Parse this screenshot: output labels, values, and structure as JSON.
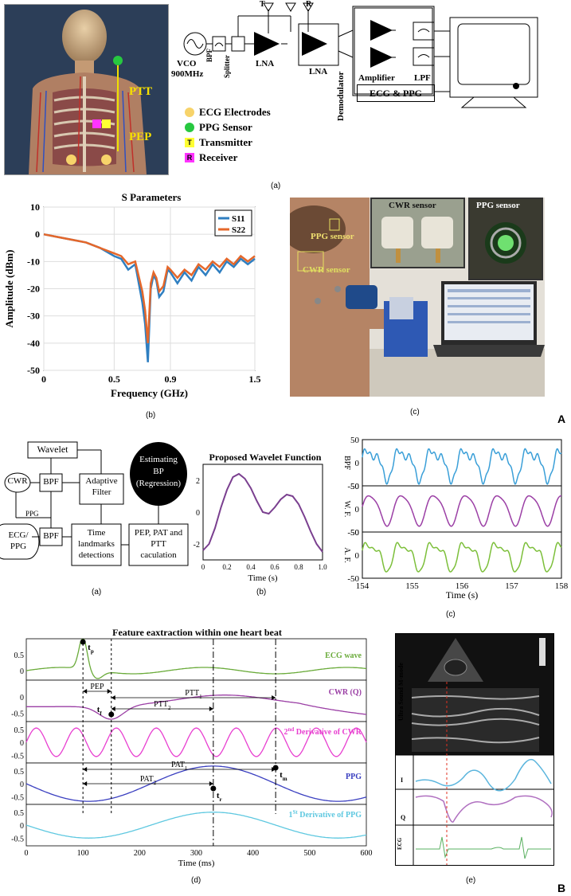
{
  "panelA": {
    "letter": "A",
    "a": {
      "caption": "(a)",
      "body_labels": {
        "ptt": "PTT",
        "pep": "PEP"
      },
      "legend": [
        {
          "color": "#f7d36a",
          "shape": "circle",
          "label": "ECG Electrodes"
        },
        {
          "color": "#27c840",
          "shape": "circle",
          "label": "PPG Sensor"
        },
        {
          "color": "#ffff33",
          "shape": "square",
          "glyph": "T",
          "label": "Transmitter"
        },
        {
          "color": "#ff33ff",
          "shape": "square",
          "glyph": "R",
          "label": "Receiver"
        }
      ],
      "blocks": {
        "vco": "VCO",
        "vco_freq": "900MHz",
        "bpf": "BPF",
        "splitter": "Splitter",
        "lna1": "LNA",
        "lna2": "LNA",
        "antenna_t": "T",
        "antenna_r": "R",
        "demodulator": "Demodulator",
        "amplifier": "Amplifier",
        "lpf": "LPF",
        "ecg_ppg": "ECG & PPG"
      }
    },
    "b": {
      "caption": "(b)",
      "chart_data": {
        "type": "line",
        "title": "S Parameters",
        "xlabel": "Frequency (GHz)",
        "ylabel": "Amplitude (dBm)",
        "xlim": [
          0,
          1.5
        ],
        "ylim": [
          -50,
          10
        ],
        "xticks": [
          "0",
          "0.5",
          "0.9",
          "1.5"
        ],
        "yticks": [
          "10",
          "0",
          "-10",
          "-20",
          "-30",
          "-40",
          "-50"
        ],
        "grid": true,
        "legend_position": "top-right",
        "series": [
          {
            "name": "S11",
            "color": "#2f7fc1",
            "x": [
              0,
              0.1,
              0.2,
              0.3,
              0.4,
              0.5,
              0.55,
              0.6,
              0.65,
              0.7,
              0.72,
              0.74,
              0.76,
              0.78,
              0.8,
              0.82,
              0.85,
              0.88,
              0.9,
              0.95,
              1.0,
              1.05,
              1.1,
              1.15,
              1.2,
              1.25,
              1.3,
              1.35,
              1.4,
              1.45,
              1.5
            ],
            "y": [
              0,
              -1,
              -2,
              -3,
              -5,
              -8,
              -9,
              -13,
              -11,
              -25,
              -33,
              -47,
              -20,
              -15,
              -17,
              -23,
              -21,
              -13,
              -14,
              -18,
              -14,
              -17,
              -12,
              -15,
              -11,
              -14,
              -10,
              -12,
              -9,
              -11,
              -9
            ]
          },
          {
            "name": "S22",
            "color": "#e5672a",
            "x": [
              0,
              0.1,
              0.2,
              0.3,
              0.4,
              0.5,
              0.55,
              0.6,
              0.65,
              0.7,
              0.72,
              0.74,
              0.76,
              0.78,
              0.8,
              0.82,
              0.85,
              0.88,
              0.9,
              0.95,
              1.0,
              1.05,
              1.1,
              1.15,
              1.2,
              1.25,
              1.3,
              1.35,
              1.4,
              1.45,
              1.5
            ],
            "y": [
              0,
              -1,
              -2,
              -3,
              -5,
              -7,
              -8,
              -11,
              -10,
              -21,
              -28,
              -40,
              -18,
              -14,
              -16,
              -21,
              -19,
              -12,
              -13,
              -16,
              -13,
              -15,
              -11,
              -13,
              -10,
              -12,
              -9,
              -11,
              -8,
              -10,
              -8
            ]
          }
        ]
      }
    },
    "c": {
      "caption": "(c)",
      "labels": {
        "ppg_sensor": "PPG sensor",
        "cwr_sensor": "CWR sensor",
        "inset_cwr": "CWR sensor",
        "inset_ppg": "PPG sensor"
      }
    }
  },
  "panelB": {
    "letter": "B",
    "a": {
      "caption": "(a)",
      "blocks": {
        "wavelet": "Wavelet",
        "cwr": "CWR",
        "bpf1": "BPF",
        "adaptive": "Adaptive\nFilter",
        "ppg_label": "PPG",
        "ecg_ppg": "ECG/\nPPG",
        "bpf2": "BPF",
        "landmarks": "Time\nlandmarks\ndetections",
        "pep_calc": "PEP, PAT and\nPTT\ncaculation",
        "estimating": "Estimating\nBP\n(Regression)"
      }
    },
    "b": {
      "caption": "(b)",
      "chart_data": {
        "type": "line",
        "title": "Proposed Wavelet Function",
        "xlabel": "Time (s)",
        "ylabel": "",
        "xlim": [
          0,
          1.0
        ],
        "ylim": [
          -3,
          3
        ],
        "xticks": [
          "0",
          "0.2",
          "0.4",
          "0.6",
          "0.8",
          "1.0"
        ],
        "yticks": [
          "2",
          "0",
          "-2"
        ],
        "series": [
          {
            "color": "#7a3f8f",
            "x": [
              0,
              0.05,
              0.1,
              0.15,
              0.2,
              0.25,
              0.3,
              0.35,
              0.4,
              0.45,
              0.5,
              0.55,
              0.6,
              0.65,
              0.7,
              0.75,
              0.8,
              0.85,
              0.9,
              0.95,
              1.0
            ],
            "y": [
              -2.4,
              -2.0,
              -1.0,
              0.3,
              1.4,
              2.2,
              2.4,
              2.1,
              1.5,
              0.7,
              0.0,
              -0.1,
              0.3,
              0.8,
              1.1,
              1.0,
              0.5,
              -0.3,
              -1.2,
              -2.0,
              -2.5
            ]
          }
        ]
      }
    },
    "c": {
      "caption": "(c)",
      "chart_data": {
        "type": "line",
        "xlabel": "Time (s)",
        "xlim": [
          154,
          158
        ],
        "xticks": [
          "154",
          "155",
          "156",
          "157",
          "158"
        ],
        "panels": [
          {
            "name": "BPF",
            "color": "#3a9fd8",
            "ylim": [
              -50,
              50
            ],
            "yticks": [
              "50",
              "0",
              "-50"
            ]
          },
          {
            "name": "W. F.",
            "color": "#9b3fa5",
            "ylim": [
              -50,
              50
            ],
            "yticks": [
              "50",
              "0",
              "-50"
            ]
          },
          {
            "name": "A. F.",
            "color": "#7cbf3a",
            "ylim": [
              -50,
              50
            ],
            "yticks": [
              "50",
              "0",
              "-50"
            ]
          }
        ]
      }
    },
    "d": {
      "caption": "(d)",
      "chart_data": {
        "type": "line",
        "title": "Feature eaxtraction within one heart beat",
        "xlabel": "Time (ms)",
        "xlim": [
          0,
          600
        ],
        "xticks": [
          "0",
          "100",
          "200",
          "300",
          "400",
          "500",
          "600"
        ],
        "panels": [
          {
            "name": "ECG wave",
            "color": "#6aab3a",
            "yticks": [
              "0.5",
              "0"
            ]
          },
          {
            "name": "CWR (Q)",
            "color": "#9b3fa5",
            "yticks": [
              "0",
              "-0.5"
            ]
          },
          {
            "name": "2nd Derivative of CWR",
            "color": "#e83fd0",
            "yticks": [
              "0.5",
              "0",
              "-0.5"
            ]
          },
          {
            "name": "PPG",
            "color": "#3a3fc0",
            "yticks": [
              "0.5",
              "0",
              "-0.5"
            ]
          },
          {
            "name": "1St Derivative of PPG",
            "color": "#5ec8e0",
            "yticks": [
              "0.5",
              "0",
              "-0.5"
            ]
          }
        ],
        "markers": {
          "vlines_ms": [
            100,
            150,
            330,
            440
          ]
        },
        "annotations": {
          "tp": "t",
          "tp_sub": "p",
          "tf": "t",
          "tf_sub": "f",
          "tm": "t",
          "tm_sub": "m",
          "tr": "t",
          "tr_sub": "r",
          "pep": "PEP",
          "ptt1": "PTT",
          "ptt1_sub": "1",
          "ptt2": "PTT",
          "ptt2_sub": "2",
          "pat1": "PAT",
          "pat1_sub": "1",
          "pat2": "PAT",
          "pat2_sub": "2",
          "second": "2",
          "second_sup": "nd",
          "second_rest": " Derivative of CWR",
          "first": "1",
          "first_sup": "St",
          "first_rest": " Derivative of PPG"
        }
      }
    },
    "e": {
      "caption": "(e)",
      "labels": {
        "us": "Ultra Sound M-mode",
        "i": "I",
        "q": "Q",
        "ecg": "ECG"
      }
    }
  }
}
